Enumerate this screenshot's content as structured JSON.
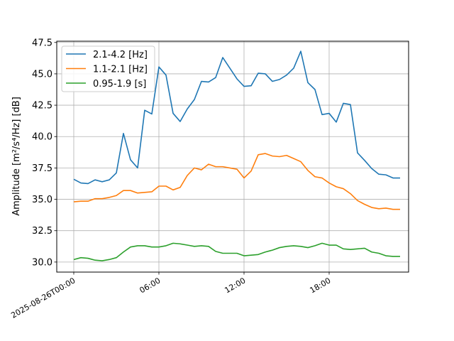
{
  "chart_data": {
    "type": "line",
    "title": "",
    "xlabel": "",
    "ylabel": "Amplitude [m²/s⁴/Hz] [dB]",
    "ylim": [
      29.2,
      47.6
    ],
    "xlim_hours": [
      -1.2,
      23.6
    ],
    "grid": true,
    "legend_position": "top-left",
    "y_ticks": [
      30.0,
      32.5,
      35.0,
      37.5,
      40.0,
      42.5,
      45.0,
      47.5
    ],
    "y_tick_labels": [
      "30.0",
      "32.5",
      "35.0",
      "37.5",
      "40.0",
      "42.5",
      "45.0",
      "47.5"
    ],
    "x_ticks_hours": [
      0,
      6,
      12,
      18
    ],
    "x_tick_labels": [
      "2025-08-26T00:00",
      "06:00",
      "12:00",
      "18:00"
    ],
    "x_hours": [
      0,
      0.5,
      1,
      1.5,
      2,
      2.5,
      3,
      3.5,
      4,
      4.5,
      5,
      5.5,
      6,
      6.5,
      7,
      7.5,
      8,
      8.5,
      9,
      9.5,
      10,
      10.5,
      11,
      11.5,
      12,
      12.5,
      13,
      13.5,
      14,
      14.5,
      15,
      15.5,
      16,
      16.5,
      17,
      17.5,
      18,
      18.5,
      19,
      19.5,
      20,
      20.5,
      21,
      21.5,
      22,
      22.5,
      23
    ],
    "series": [
      {
        "name": "2.1-4.2 [Hz]",
        "color": "#1f77b4",
        "values": [
          36.6,
          36.3,
          36.25,
          36.55,
          36.4,
          36.55,
          37.1,
          40.25,
          38.15,
          37.5,
          42.1,
          41.8,
          45.55,
          44.9,
          41.85,
          41.2,
          42.2,
          42.95,
          44.4,
          44.35,
          44.7,
          46.3,
          45.45,
          44.6,
          44.0,
          44.05,
          45.05,
          45.0,
          44.4,
          44.55,
          44.9,
          45.45,
          46.8,
          44.3,
          43.75,
          41.75,
          41.85,
          41.15,
          42.65,
          42.55,
          38.7,
          38.1,
          37.45,
          37.0,
          36.95,
          36.7,
          36.7
        ]
      },
      {
        "name": "1.1-2.1 [Hz]",
        "color": "#ff7f0e",
        "values": [
          34.8,
          34.85,
          34.85,
          35.05,
          35.05,
          35.15,
          35.3,
          35.7,
          35.7,
          35.5,
          35.55,
          35.6,
          36.05,
          36.05,
          35.75,
          35.95,
          36.9,
          37.5,
          37.35,
          37.8,
          37.6,
          37.6,
          37.5,
          37.4,
          36.7,
          37.25,
          38.55,
          38.65,
          38.45,
          38.4,
          38.5,
          38.25,
          38.0,
          37.3,
          36.8,
          36.7,
          36.3,
          36.0,
          35.85,
          35.45,
          34.9,
          34.6,
          34.35,
          34.25,
          34.3,
          34.2,
          34.2
        ]
      },
      {
        "name": "0.95-1.9 [s]",
        "color": "#2ca02c",
        "values": [
          30.2,
          30.35,
          30.3,
          30.15,
          30.1,
          30.2,
          30.35,
          30.8,
          31.2,
          31.3,
          31.3,
          31.2,
          31.2,
          31.3,
          31.5,
          31.45,
          31.35,
          31.25,
          31.3,
          31.25,
          30.85,
          30.7,
          30.7,
          30.7,
          30.5,
          30.55,
          30.6,
          30.8,
          30.95,
          31.15,
          31.25,
          31.3,
          31.25,
          31.15,
          31.3,
          31.5,
          31.35,
          31.35,
          31.05,
          31.0,
          31.05,
          31.1,
          30.8,
          30.7,
          30.5,
          30.45,
          30.45
        ]
      }
    ]
  }
}
